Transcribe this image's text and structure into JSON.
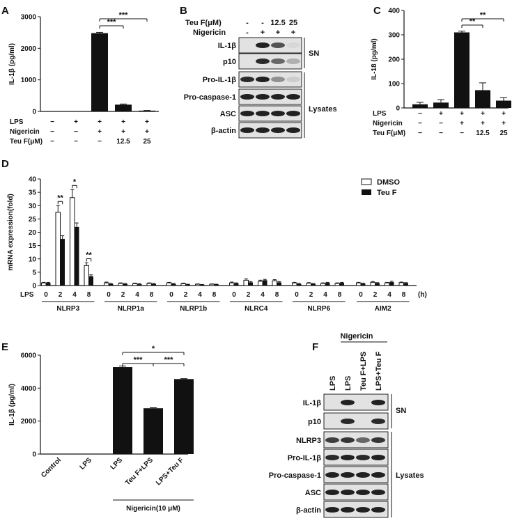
{
  "panel_labels": [
    "A",
    "B",
    "C",
    "D",
    "E",
    "F"
  ],
  "chart_data": [
    {
      "panel": "A",
      "type": "bar",
      "ylabel": "IL-1β (pg/ml)",
      "ylim": [
        0,
        3000
      ],
      "yticks": [
        "0",
        "1000",
        "2000",
        "3000"
      ],
      "values": [
        0,
        0,
        2480,
        215,
        25
      ],
      "errors": [
        0,
        0,
        25,
        20,
        5
      ],
      "conditions": [
        {
          "name": "LPS",
          "marks": [
            "−",
            "+",
            "+",
            "+",
            "+"
          ]
        },
        {
          "name": "Nigericin",
          "marks": [
            "−",
            "−",
            "+",
            "+",
            "+"
          ]
        },
        {
          "name": "Teu F(μM)",
          "marks": [
            "−",
            "−",
            "−",
            "12.5",
            "25"
          ]
        }
      ],
      "significance": [
        {
          "label": "***",
          "from": 2,
          "to": 3
        },
        {
          "label": "***",
          "from": 2,
          "to": 4
        }
      ]
    },
    {
      "panel": "C",
      "type": "bar",
      "ylabel": "IL-18 (pg/ml)",
      "ylim": [
        0,
        400
      ],
      "yticks": [
        "0",
        "100",
        "200",
        "300",
        "400"
      ],
      "values": [
        15,
        22,
        310,
        73,
        30
      ],
      "errors": [
        8,
        12,
        5,
        30,
        12
      ],
      "conditions": [
        {
          "name": "LPS",
          "marks": [
            "−",
            "+",
            "+",
            "+",
            "+"
          ]
        },
        {
          "name": "Nigericin",
          "marks": [
            "−",
            "−",
            "+",
            "+",
            "+"
          ]
        },
        {
          "name": "Teu F(μM)",
          "marks": [
            "−",
            "−",
            "−",
            "12.5",
            "25"
          ]
        }
      ],
      "significance": [
        {
          "label": "**",
          "from": 2,
          "to": 3
        },
        {
          "label": "**",
          "from": 2,
          "to": 4
        }
      ]
    },
    {
      "panel": "D",
      "type": "bar",
      "ylabel": "mRNA expression(fold)",
      "ylim": [
        0,
        40
      ],
      "yticks": [
        "0",
        "5",
        "10",
        "15",
        "20",
        "25",
        "30",
        "35",
        "40"
      ],
      "x_prefix": "LPS",
      "x_unit": "(h)",
      "timepoints": [
        "0",
        "2",
        "4",
        "8"
      ],
      "legend": [
        "DMSO",
        "Teu F"
      ],
      "groups": [
        {
          "name": "NLRP3",
          "dmso": [
            1,
            27.5,
            33,
            7.5
          ],
          "teuf": [
            1,
            17.5,
            22,
            3.5
          ],
          "dmso_err": [
            0.2,
            2.5,
            3,
            1
          ],
          "teuf_err": [
            0.2,
            1.2,
            1.5,
            0.5
          ]
        },
        {
          "name": "NLRP1a",
          "dmso": [
            1,
            0.8,
            0.7,
            0.8
          ],
          "teuf": [
            0.6,
            0.6,
            0.5,
            0.6
          ],
          "dmso_err": [
            0.3,
            0.2,
            0.2,
            0.2
          ],
          "teuf_err": [
            0.2,
            0.2,
            0.2,
            0.2
          ]
        },
        {
          "name": "NLRP1b",
          "dmso": [
            1,
            0.7,
            0.5,
            0.5
          ],
          "teuf": [
            0.6,
            0.4,
            0.3,
            0.4
          ],
          "dmso_err": [
            0.2,
            0.2,
            0.1,
            0.1
          ],
          "teuf_err": [
            0.2,
            0.1,
            0.1,
            0.1
          ]
        },
        {
          "name": "NLRC4",
          "dmso": [
            1,
            2,
            1.6,
            1.8
          ],
          "teuf": [
            0.8,
            1.2,
            2,
            1.2
          ],
          "dmso_err": [
            0.3,
            0.5,
            0.4,
            0.4
          ],
          "teuf_err": [
            0.2,
            0.3,
            0.3,
            0.3
          ]
        },
        {
          "name": "NLRP6",
          "dmso": [
            1,
            0.9,
            0.8,
            0.8
          ],
          "teuf": [
            0.6,
            0.6,
            1,
            1
          ],
          "dmso_err": [
            0.2,
            0.2,
            0.2,
            0.2
          ],
          "teuf_err": [
            0.2,
            0.2,
            0.2,
            0.2
          ]
        },
        {
          "name": "AIM2",
          "dmso": [
            1,
            1.2,
            1,
            1.1
          ],
          "teuf": [
            0.7,
            0.9,
            1.3,
            0.9
          ],
          "dmso_err": [
            0.2,
            0.3,
            0.2,
            0.2
          ],
          "teuf_err": [
            0.2,
            0.2,
            0.3,
            0.2
          ]
        }
      ],
      "significance": [
        {
          "label": "**",
          "group": 0,
          "time": 1
        },
        {
          "label": "*",
          "group": 0,
          "time": 2
        },
        {
          "label": "**",
          "group": 0,
          "time": 3
        }
      ]
    },
    {
      "panel": "E",
      "type": "bar",
      "ylabel": "IL-1β (pg/ml)",
      "ylim": [
        0,
        6000
      ],
      "yticks": [
        "0",
        "2000",
        "4000",
        "6000"
      ],
      "categories": [
        "Control",
        "LPS",
        "LPS",
        "Teu F+LPS",
        "LPS+Teu F"
      ],
      "values": [
        0,
        0,
        5280,
        2780,
        4550
      ],
      "errors": [
        0,
        0,
        60,
        30,
        25
      ],
      "bracket_label": "Nigericin(10 μM)",
      "significance": [
        {
          "label": "***",
          "from": 2,
          "to": 3
        },
        {
          "label": "***",
          "from": 3,
          "to": 4
        },
        {
          "label": "*",
          "from": 2,
          "to": 4
        }
      ]
    }
  ],
  "blots": {
    "B": {
      "teu_label": "Teu F(μM)",
      "teu_marks": [
        "-",
        "-",
        "12.5",
        "25"
      ],
      "nig_label": "Nigericin",
      "nig_marks": [
        "-",
        "+",
        "+",
        "+"
      ],
      "rows": [
        "IL-1β",
        "p10",
        "Pro-IL-1β",
        "Pro-caspase-1",
        "ASC",
        "β-actin"
      ],
      "group_sn": "SN",
      "group_lys": "Lysates"
    },
    "F": {
      "header": "Nigericin",
      "lanes": [
        "LPS",
        "LPS",
        "Teu F+LPS",
        "LPS+Teu F"
      ],
      "rows": [
        "IL-1β",
        "p10",
        "NLRP3",
        "Pro-IL-1β",
        "Pro-caspase-1",
        "ASC",
        "β-actin"
      ],
      "group_sn": "SN",
      "group_lys": "Lysates"
    }
  },
  "colors": {
    "bar": "#111111",
    "open_bar": "#ffffff",
    "blot_bg": "#e2e2e2",
    "band": "#161616"
  }
}
